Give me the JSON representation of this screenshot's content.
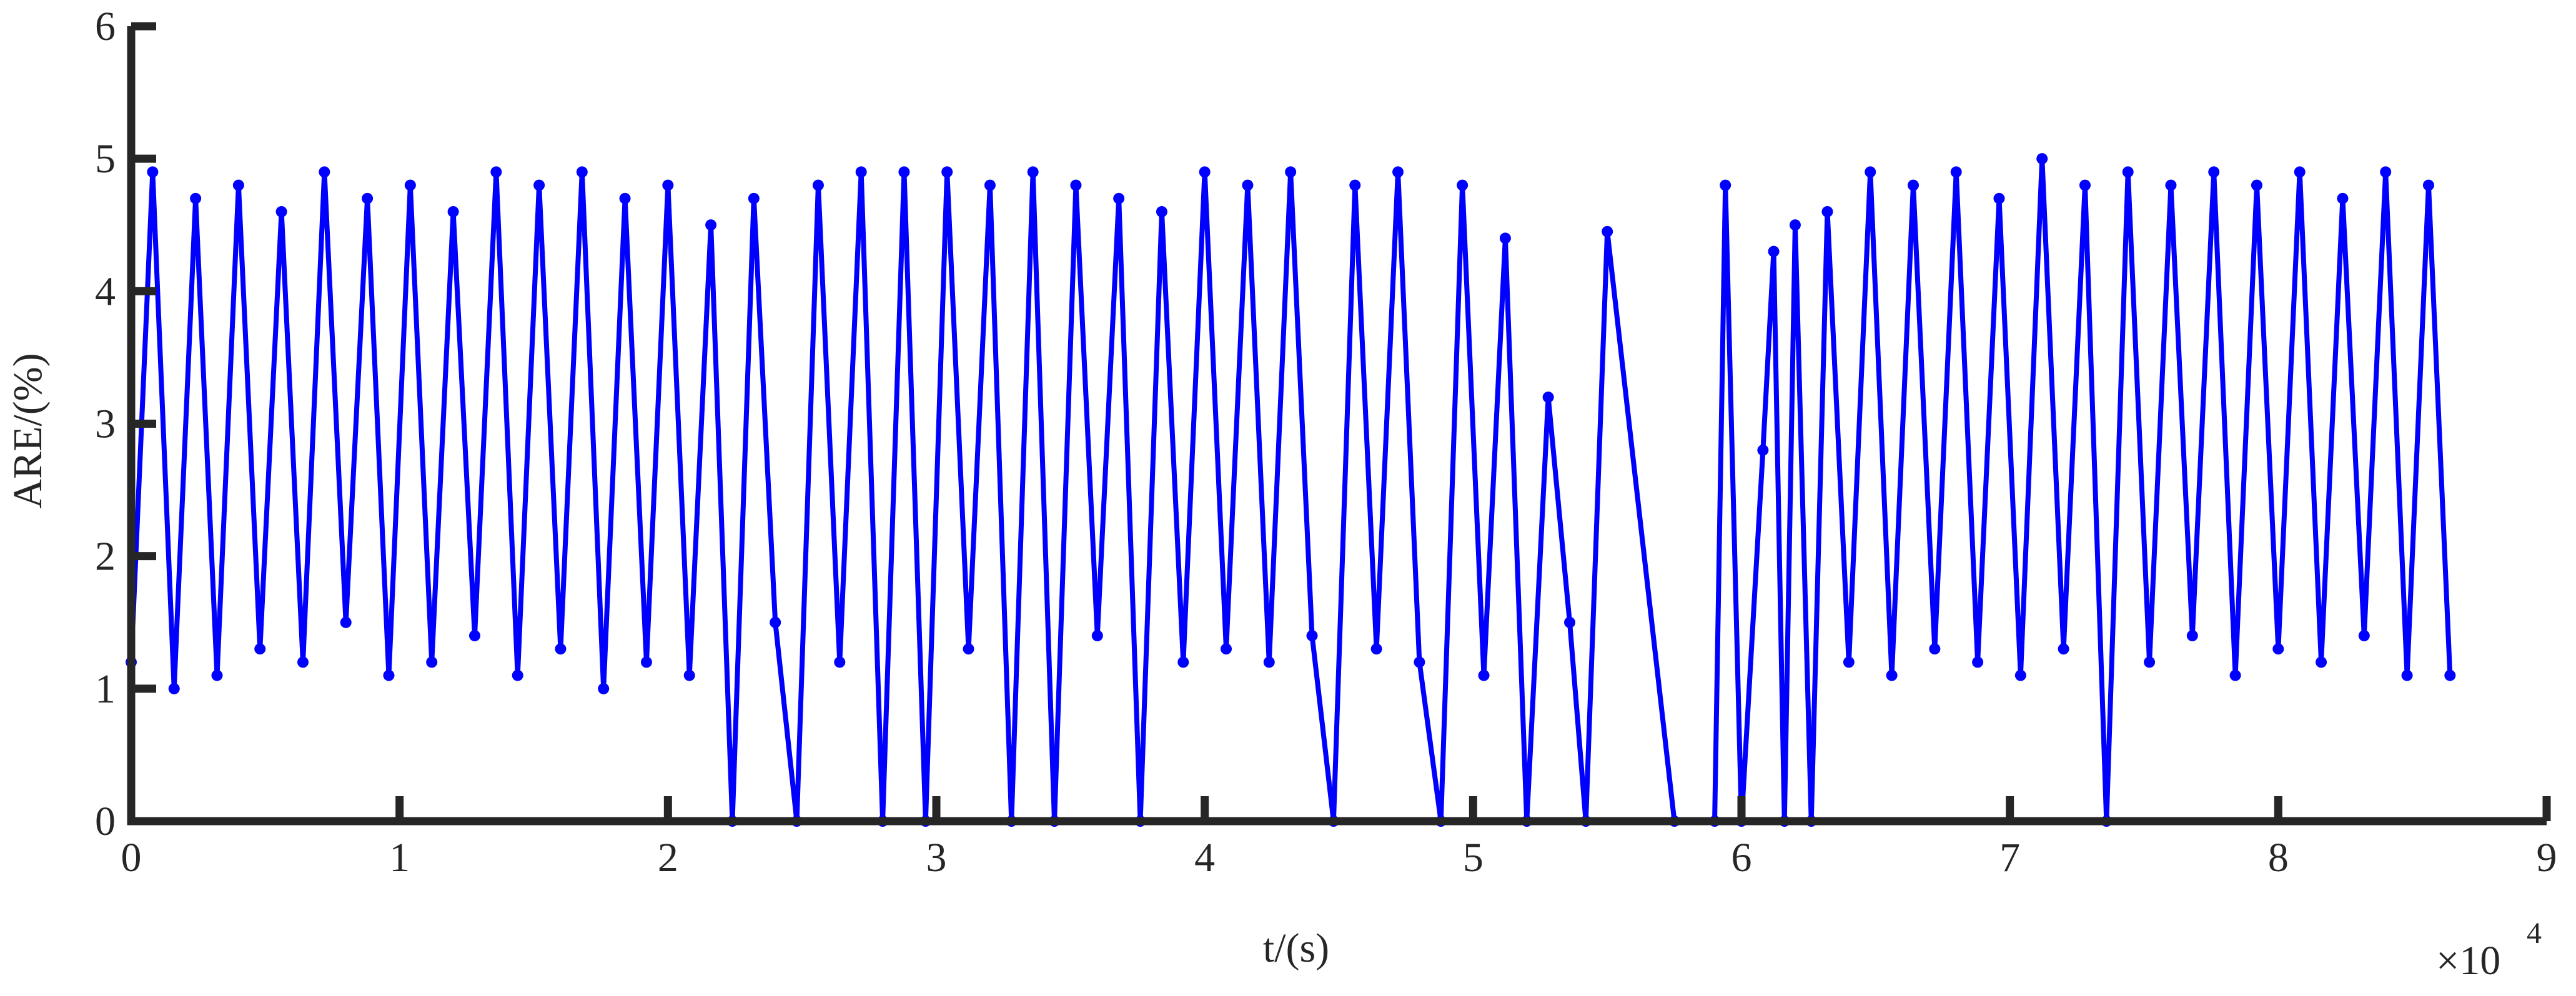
{
  "chart_data": {
    "type": "line",
    "xlabel": "t/(s)",
    "ylabel": "ARE/(%)",
    "x_scale_base": "×10",
    "x_scale_exponent": "4",
    "xlim": [
      0,
      90000
    ],
    "ylim": [
      0,
      6
    ],
    "xticks": [
      0,
      {
        "value": 10000,
        "label": "1"
      },
      {
        "value": 20000,
        "label": "2"
      },
      {
        "value": 30000,
        "label": "3"
      },
      {
        "value": 40000,
        "label": "4"
      },
      {
        "value": 50000,
        "label": "5"
      },
      {
        "value": 60000,
        "label": "6"
      },
      {
        "value": 70000,
        "label": "7"
      },
      {
        "value": 80000,
        "label": "8"
      },
      {
        "value": 90000,
        "label": "9"
      }
    ],
    "yticks": [
      0,
      1,
      2,
      3,
      4,
      5,
      6
    ],
    "series": [
      {
        "color": "#0000ff",
        "x": [
          0,
          800,
          1600,
          2400,
          3200,
          4000,
          4800,
          5600,
          6400,
          7200,
          8000,
          8800,
          9600,
          10400,
          11200,
          12000,
          12800,
          13600,
          14400,
          15200,
          16000,
          16800,
          17600,
          18400,
          19200,
          20000,
          20800,
          21600,
          22400,
          23200,
          24000,
          24800,
          25600,
          26400,
          27200,
          28000,
          28800,
          29600,
          30400,
          31200,
          32000,
          32800,
          33600,
          34400,
          35200,
          36000,
          36800,
          37600,
          38400,
          39200,
          40000,
          40800,
          41600,
          42400,
          43200,
          44000,
          44800,
          45600,
          46400,
          47200,
          48000,
          48800,
          49600,
          50400,
          51200,
          52000,
          52800,
          53600,
          54200,
          55000,
          57500,
          59000,
          59400,
          60000,
          60800,
          61200,
          61600,
          62000,
          62600,
          63200,
          64000,
          64800,
          65600,
          66400,
          67200,
          68000,
          68800,
          69600,
          70400,
          71200,
          72000,
          72800,
          73600,
          74400,
          75200,
          76000,
          76800,
          77600,
          78400,
          79200,
          80000,
          80800,
          81600,
          82400,
          83200,
          84000,
          84800,
          85600,
          86400
        ],
        "values": [
          1.2,
          4.9,
          1.0,
          4.7,
          1.1,
          4.8,
          1.3,
          4.6,
          1.2,
          4.9,
          1.5,
          4.7,
          1.1,
          4.8,
          1.2,
          4.6,
          1.4,
          4.9,
          1.1,
          4.8,
          1.3,
          4.9,
          1.0,
          4.7,
          1.2,
          4.8,
          1.1,
          4.5,
          0,
          4.7,
          1.5,
          0,
          4.8,
          1.2,
          4.9,
          0,
          4.9,
          0,
          4.9,
          1.3,
          4.8,
          0,
          4.9,
          0,
          4.8,
          1.4,
          4.7,
          0,
          4.6,
          1.2,
          4.9,
          1.3,
          4.8,
          1.2,
          4.9,
          1.4,
          0,
          4.8,
          1.3,
          4.9,
          1.2,
          0,
          4.8,
          1.1,
          4.4,
          0,
          3.2,
          1.5,
          0,
          4.45,
          0,
          0,
          4.8,
          0,
          2.8,
          4.3,
          0,
          4.5,
          0,
          4.6,
          1.2,
          4.9,
          1.1,
          4.8,
          1.3,
          4.9,
          1.2,
          4.7,
          1.1,
          5.0,
          1.3,
          4.8,
          0,
          4.9,
          1.2,
          4.8,
          1.4,
          4.9,
          1.1,
          4.8,
          1.3,
          4.9,
          1.2,
          4.7,
          1.4,
          4.9,
          1.1,
          4.8,
          1.1
        ]
      }
    ]
  }
}
